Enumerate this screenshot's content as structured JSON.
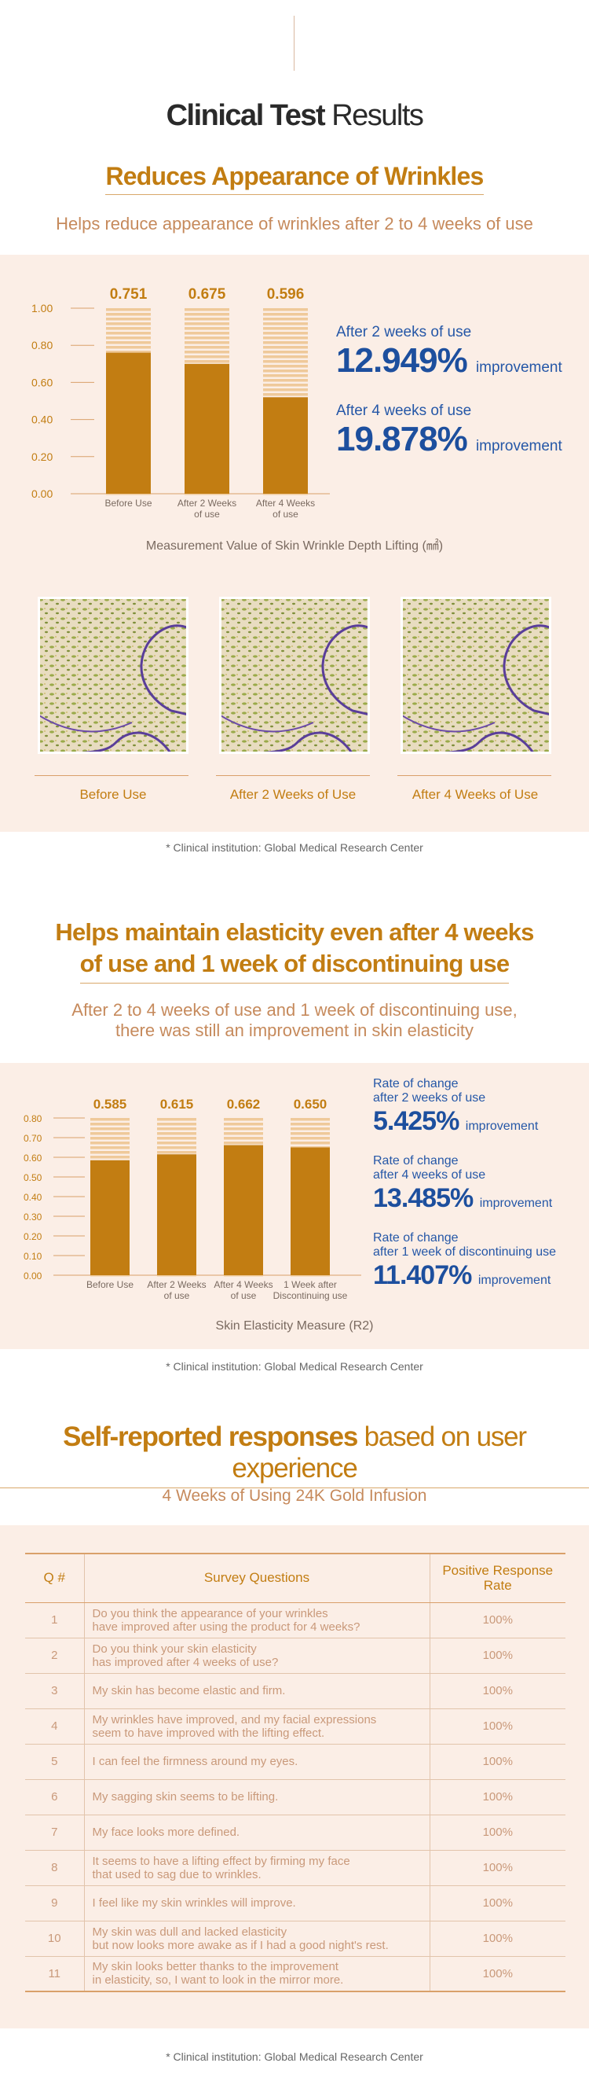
{
  "header": {
    "title_bold": "Clinical Test",
    "title_light": "Results"
  },
  "wrinkles": {
    "title": "Reduces Appearance of Wrinkles",
    "subtitle": "Helps reduce appearance of wrinkles after 2 to 4 weeks of use",
    "stats": [
      {
        "label": "After 2 weeks of use",
        "value": "12.949%",
        "suffix": "improvement"
      },
      {
        "label": "After 4 weeks of use",
        "value": "19.878%",
        "suffix": "improvement"
      }
    ],
    "caption": "Measurement Value of Skin Wrinkle Depth Lifting (㎟)",
    "images": [
      {
        "label": "Before Use"
      },
      {
        "label": "After 2 Weeks of Use"
      },
      {
        "label": "After 4 Weeks of Use"
      }
    ],
    "footnote": "* Clinical institution: Global Medical Research Center"
  },
  "elasticity": {
    "title_line1": "Helps maintain elasticity even after 4 weeks",
    "title_line2": "of use and 1 week of discontinuing use",
    "subtitle_line1": "After 2 to 4 weeks of use and 1 week of discontinuing use,",
    "subtitle_line2": "there was still an improvement in skin elasticity",
    "stats": [
      {
        "label1": "Rate of change",
        "label2": "after 2 weeks of use",
        "value": "5.425%",
        "suffix": "improvement"
      },
      {
        "label1": "Rate of change",
        "label2": "after 4 weeks of use",
        "value": "13.485%",
        "suffix": "improvement"
      },
      {
        "label1": "Rate of change",
        "label2": "after 1 week of discontinuing use",
        "value": "11.407%",
        "suffix": "improvement"
      }
    ],
    "caption": "Skin Elasticity Measure (R2)",
    "footnote": "* Clinical institution: Global Medical Research Center"
  },
  "survey": {
    "title_bold": "Self-reported responses",
    "title_light": "based on user experience",
    "subtitle": "4 Weeks of Using 24K Gold Infusion",
    "headers": [
      "Q #",
      "Survey Questions",
      "Positive Response Rate"
    ],
    "rows": [
      {
        "n": "1",
        "q1": "Do you think the appearance of your wrinkles",
        "q2": "have improved after using the product for 4 weeks?",
        "rate": "100%"
      },
      {
        "n": "2",
        "q1": "Do you think your skin elasticity",
        "q2": "has improved after 4 weeks of use?",
        "rate": "100%"
      },
      {
        "n": "3",
        "q1": "My skin has become elastic and firm.",
        "q2": "",
        "rate": "100%"
      },
      {
        "n": "4",
        "q1": "My wrinkles have improved, and my facial expressions",
        "q2": "seem to have improved with the lifting effect.",
        "rate": "100%"
      },
      {
        "n": "5",
        "q1": "I can feel the firmness around my eyes.",
        "q2": "",
        "rate": "100%"
      },
      {
        "n": "6",
        "q1": "My sagging skin seems to be lifting.",
        "q2": "",
        "rate": "100%"
      },
      {
        "n": "7",
        "q1": "My face looks more defined.",
        "q2": "",
        "rate": "100%"
      },
      {
        "n": "8",
        "q1": "It seems to have a lifting effect by firming my face",
        "q2": "that used to sag due to wrinkles.",
        "rate": "100%"
      },
      {
        "n": "9",
        "q1": "I feel like my skin wrinkles will improve.",
        "q2": "",
        "rate": "100%"
      },
      {
        "n": "10",
        "q1": "My skin was dull and lacked elasticity",
        "q2": "but now looks more awake as if I had a good night's rest.",
        "rate": "100%"
      },
      {
        "n": "11",
        "q1": "My skin looks better thanks to the improvement",
        "q2": "in elasticity, so, I want to look in the mirror more.",
        "rate": "100%"
      }
    ],
    "footnote": "* Clinical institution: Global Medical Research Center"
  },
  "colors": {
    "gold": "#c27d12",
    "blue": "#1d4f9e",
    "panel": "#fbeee6",
    "stripe": "#efc99a"
  },
  "chart_data": [
    {
      "type": "bar",
      "categories": [
        "Before Use",
        "After 2 Weeks of use",
        "After 4 Weeks of use"
      ],
      "values": [
        0.751,
        0.675,
        0.596
      ],
      "value_labels": [
        "0.751",
        "0.675",
        "0.596"
      ],
      "bar_fill": [
        0.76,
        0.7,
        0.52
      ],
      "yticks": [
        "1.00",
        "0.80",
        "0.60",
        "0.40",
        "0.20",
        "0.00"
      ],
      "ylim": [
        0,
        1.0
      ],
      "xlabel": "Measurement Value of Skin Wrinkle Depth Lifting (㎟)"
    },
    {
      "type": "bar",
      "categories": [
        "Before Use",
        "After 2 Weeks of use",
        "After 4 Weeks of use",
        "1 Week after Discontinuing use"
      ],
      "values": [
        0.585,
        0.615,
        0.662,
        0.65
      ],
      "value_labels": [
        "0.585",
        "0.615",
        "0.662",
        "0.650"
      ],
      "yticks": [
        "0.80",
        "0.70",
        "0.60",
        "0.50",
        "0.40",
        "0.30",
        "0.20",
        "0.10",
        "0.00"
      ],
      "ylim": [
        0,
        0.8
      ],
      "xlabel": "Skin Elasticity Measure (R2)"
    }
  ]
}
